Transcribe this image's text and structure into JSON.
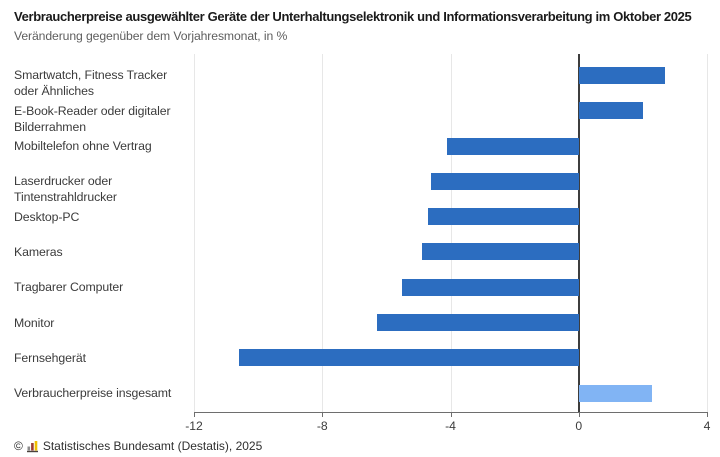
{
  "header": {
    "title": "Verbraucherpreise ausgewählter Geräte der Unterhaltungselektronik und Informationsverarbeitung im Oktober 2025",
    "subtitle": "Veränderung gegenüber dem Vorjahresmonat, in %"
  },
  "chart_data": {
    "type": "bar",
    "orientation": "horizontal",
    "title": "Verbraucherpreise ausgewählter Geräte der Unterhaltungselektronik und Informationsverarbeitung im Oktober 2025",
    "subtitle": "Veränderung gegenüber dem Vorjahresmonat, in %",
    "unit": "%",
    "categories": [
      "Smartwatch, Fitness Tracker oder Ähnliches",
      "E-Book-Reader oder digitaler Bilderrahmen",
      "Mobiltelefon ohne Vertrag",
      "Laserdrucker oder Tintenstrahldrucker",
      "Desktop-PC",
      "Kameras",
      "Tragbarer Computer",
      "Monitor",
      "Fernsehgerät",
      "Verbraucherpreise insgesamt"
    ],
    "values": [
      2.7,
      2.0,
      -4.1,
      -4.6,
      -4.7,
      -4.9,
      -5.5,
      -6.3,
      -10.6,
      2.3
    ],
    "highlighted_category": "Verbraucherpreise insgesamt",
    "xlim": [
      -12,
      4
    ],
    "xticks": [
      -12,
      -8,
      -4,
      0,
      4
    ],
    "grid": true,
    "legend": false,
    "colors": {
      "bar": "#2c6dc0",
      "bar_highlight": "#81b4f4",
      "zero_line": "#3d3d3d",
      "grid_line": "#e7e7e7",
      "axis_line": "#6e6e6e"
    }
  },
  "footer": {
    "copyright_symbol": "©",
    "source_text": "Statistisches Bundesamt (Destatis), 2025",
    "logo_icon": "destatis-bars-icon",
    "logo_colors": {
      "bar1": "#8d8d8d",
      "bar2": "#9b3b32",
      "bar3": "#f1bf00",
      "baseline": "#4a423c"
    }
  }
}
